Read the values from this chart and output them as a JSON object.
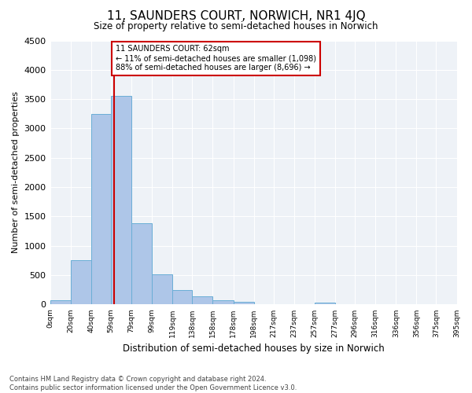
{
  "title": "11, SAUNDERS COURT, NORWICH, NR1 4JQ",
  "subtitle": "Size of property relative to semi-detached houses in Norwich",
  "xlabel": "Distribution of semi-detached houses by size in Norwich",
  "ylabel": "Number of semi-detached properties",
  "property_size": 62,
  "property_label": "11 SAUNDERS COURT: 62sqm",
  "pct_smaller": 11,
  "count_smaller": "1,098",
  "pct_larger": 88,
  "count_larger": "8,696",
  "bin_edges": [
    0,
    20,
    40,
    59,
    79,
    99,
    119,
    138,
    158,
    178,
    198,
    217,
    237,
    257,
    277,
    296,
    316,
    336,
    356,
    375,
    395
  ],
  "bin_labels": [
    "0sqm",
    "20sqm",
    "40sqm",
    "59sqm",
    "79sqm",
    "99sqm",
    "119sqm",
    "138sqm",
    "158sqm",
    "178sqm",
    "198sqm",
    "217sqm",
    "237sqm",
    "257sqm",
    "277sqm",
    "296sqm",
    "316sqm",
    "336sqm",
    "356sqm",
    "375sqm",
    "395sqm"
  ],
  "bar_heights": [
    75,
    750,
    3250,
    3550,
    1380,
    510,
    250,
    140,
    75,
    45,
    0,
    0,
    0,
    35,
    0,
    0,
    0,
    0,
    0,
    0
  ],
  "bar_color": "#aec6e8",
  "bar_edgecolor": "#6aaed6",
  "red_line_color": "#cc0000",
  "annotation_box_color": "#cc0000",
  "background_color": "#eef2f7",
  "grid_color": "#ffffff",
  "ylim": [
    0,
    4500
  ],
  "yticks": [
    0,
    500,
    1000,
    1500,
    2000,
    2500,
    3000,
    3500,
    4000,
    4500
  ],
  "footer_line1": "Contains HM Land Registry data © Crown copyright and database right 2024.",
  "footer_line2": "Contains public sector information licensed under the Open Government Licence v3.0."
}
